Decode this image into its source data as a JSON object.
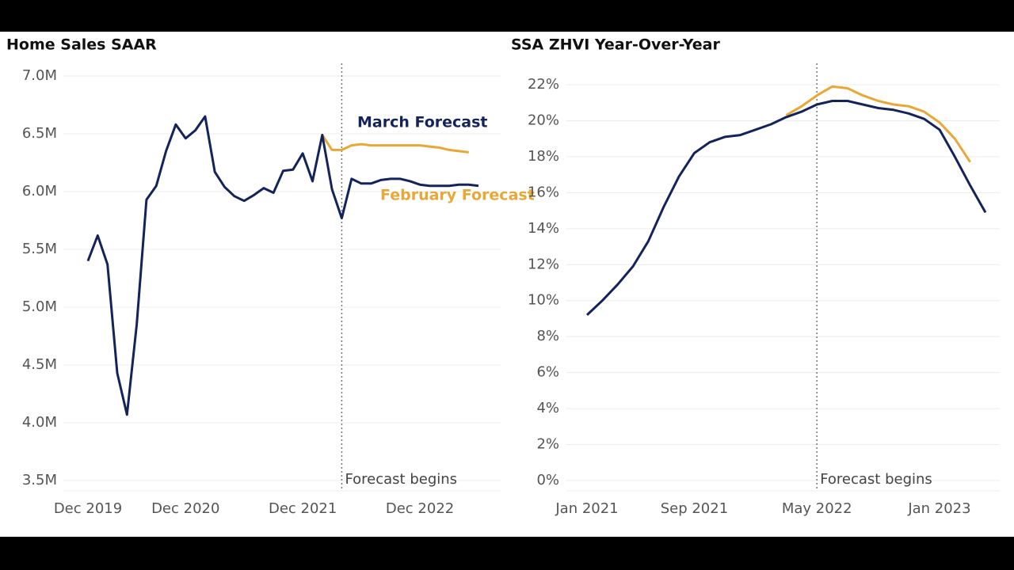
{
  "chart_data": [
    {
      "type": "line",
      "title": "Home Sales SAAR",
      "categories": [
        "Dec 2019",
        null,
        null,
        null,
        null,
        null,
        null,
        null,
        null,
        null,
        "Dec 2020",
        null,
        null,
        null,
        null,
        null,
        null,
        null,
        null,
        null,
        null,
        null,
        "Dec 2021",
        null,
        null,
        null,
        null,
        null,
        null,
        null,
        null,
        null,
        null,
        null,
        "Dec 2022",
        null,
        null,
        null,
        null,
        null,
        null
      ],
      "series": [
        {
          "name": "March Forecast",
          "color": "#14245a",
          "values": [
            5.4,
            5.62,
            5.37,
            4.43,
            4.07,
            4.85,
            5.93,
            6.05,
            6.35,
            6.58,
            6.46,
            6.53,
            6.65,
            6.17,
            6.04,
            5.96,
            5.92,
            5.97,
            6.03,
            5.99,
            6.18,
            6.19,
            6.33,
            6.09,
            6.49,
            6.02,
            5.77,
            6.11,
            6.07,
            6.07,
            6.1,
            6.11,
            6.11,
            6.09,
            6.06,
            6.05,
            6.05,
            6.05,
            6.06,
            6.06,
            6.05
          ]
        },
        {
          "name": "February Forecast",
          "color": "#e8a838",
          "values": [
            null,
            null,
            null,
            null,
            null,
            null,
            null,
            null,
            null,
            null,
            null,
            null,
            null,
            null,
            null,
            null,
            null,
            null,
            null,
            null,
            null,
            null,
            null,
            null,
            6.49,
            6.36,
            6.36,
            6.4,
            6.41,
            6.4,
            6.4,
            6.4,
            6.4,
            6.4,
            6.4,
            6.39,
            6.38,
            6.36,
            6.35,
            6.34,
            null
          ]
        }
      ],
      "ylim": [
        3.5,
        7.0
      ],
      "yticks": [
        {
          "value": 3.5,
          "label": "3.5M"
        },
        {
          "value": 4.0,
          "label": "4.0M"
        },
        {
          "value": 4.5,
          "label": "4.5M"
        },
        {
          "value": 5.0,
          "label": "5.0M"
        },
        {
          "value": 5.5,
          "label": "5.5M"
        },
        {
          "value": 6.0,
          "label": "6.0M"
        },
        {
          "value": 6.5,
          "label": "6.5M"
        },
        {
          "value": 7.0,
          "label": "7.0M"
        }
      ],
      "grid": true,
      "annotation": {
        "text": "Forecast begins",
        "x": 26
      }
    },
    {
      "type": "line",
      "title": "SSA ZHVI Year-Over-Year",
      "categories": [
        "Jan 2021",
        null,
        null,
        null,
        null,
        null,
        null,
        "Sep 2021",
        null,
        null,
        null,
        null,
        null,
        null,
        null,
        "May 2022",
        null,
        null,
        null,
        null,
        null,
        null,
        null,
        "Jan 2023",
        null,
        null,
        null
      ],
      "series": [
        {
          "color": "#14245a",
          "values": [
            9.2,
            10.0,
            10.9,
            11.9,
            13.3,
            15.2,
            16.9,
            18.2,
            18.8,
            19.1,
            19.2,
            19.5,
            19.8,
            20.2,
            20.5,
            20.9,
            21.1,
            21.1,
            20.9,
            20.7,
            20.6,
            20.4,
            20.1,
            19.5,
            18.0,
            16.4,
            14.9
          ]
        },
        {
          "color": "#e8a838",
          "values": [
            null,
            null,
            null,
            null,
            null,
            null,
            null,
            null,
            null,
            null,
            null,
            null,
            null,
            20.3,
            20.8,
            21.4,
            21.9,
            21.8,
            21.4,
            21.1,
            20.9,
            20.8,
            20.5,
            19.9,
            19.0,
            17.7,
            null
          ]
        }
      ],
      "ylim": [
        0,
        22
      ],
      "yticks": [
        {
          "value": 0,
          "label": "0%"
        },
        {
          "value": 2,
          "label": "2%"
        },
        {
          "value": 4,
          "label": "4%"
        },
        {
          "value": 6,
          "label": "6%"
        },
        {
          "value": 8,
          "label": "8%"
        },
        {
          "value": 10,
          "label": "10%"
        },
        {
          "value": 12,
          "label": "12%"
        },
        {
          "value": 14,
          "label": "14%"
        },
        {
          "value": 16,
          "label": "16%"
        },
        {
          "value": 18,
          "label": "18%"
        },
        {
          "value": 20,
          "label": "20%"
        },
        {
          "value": 22,
          "label": "22%"
        }
      ],
      "grid": true,
      "annotation": {
        "text": "Forecast begins",
        "x": 15
      }
    }
  ]
}
